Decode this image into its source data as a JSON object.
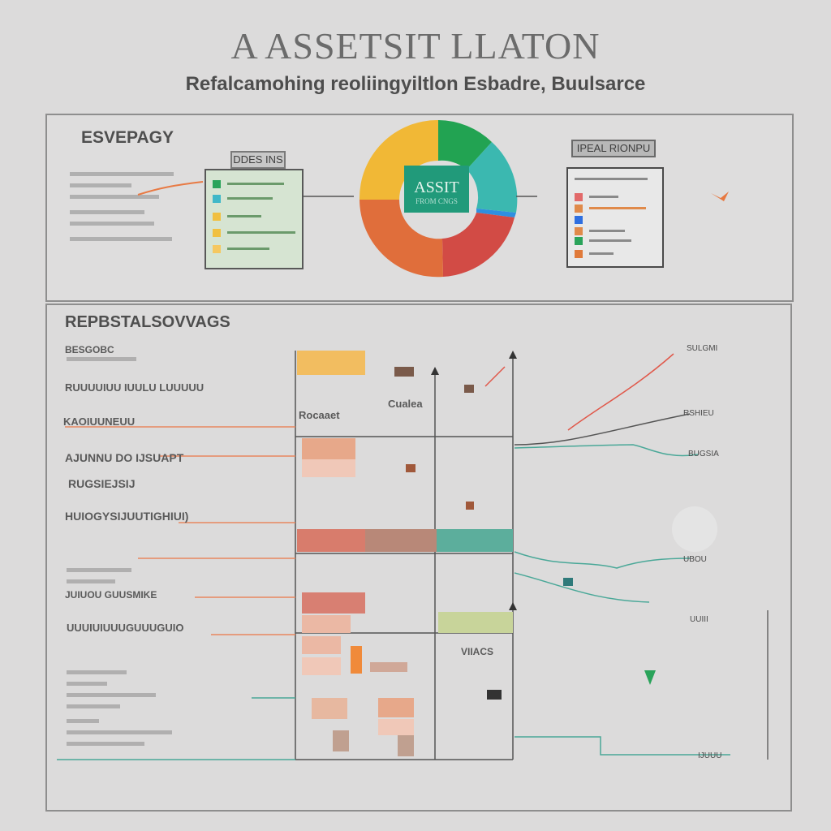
{
  "header": {
    "title": "A ASSETSIT LLATON",
    "subtitle": "Refalcamohing reoliingyiltlon Esbadre, Buulsarce"
  },
  "top_panel": {
    "heading": "ESVEPAGY",
    "legend_tag": "DDES INS",
    "center_tag": "ASSIT",
    "center_sub": "FROM CNGS",
    "right_tag": "IPEAL RIONPU"
  },
  "bottom_panel": {
    "heading": "REPBSTALSOVVAGS",
    "left_labels": [
      "BESGOBC",
      "RUUUUIUU IUULU LUUUUU",
      "KAOIUUNEUU",
      "AJUNNU DO IJSUAPT",
      "RUGSIEJSIJ",
      "HUIOGYSIJUUTIGHIUI)",
      "JUIUOU GUUSMIKE",
      "UUUIUIUUUGUUUGUIO"
    ],
    "table_labels": {
      "left": "Rocaaet",
      "right": "Cualea",
      "bottom": "VIIACS"
    },
    "right_flags": [
      "SULGMI",
      "RSHIEU",
      "BUGSIA",
      "UBOU",
      "UUIII",
      "IJUUU"
    ]
  },
  "colors": {
    "pie_yellow": "#f1b836",
    "pie_green": "#22a352",
    "pie_teal": "#3bb8b0",
    "pie_blue": "#2f8fe0",
    "pie_red": "#d24b45",
    "pie_orange": "#e06e3b",
    "center_tag": "#219a7a",
    "accent_orange": "#e77840",
    "accent_teal": "#45a89a"
  }
}
